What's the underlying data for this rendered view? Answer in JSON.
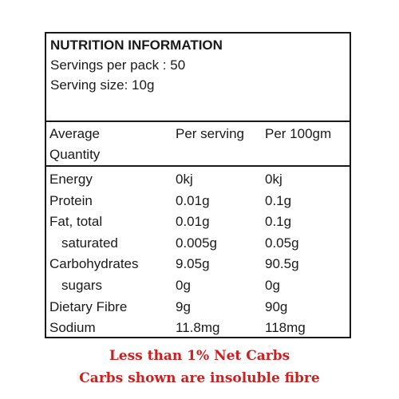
{
  "panel": {
    "title": "NUTRITION INFORMATION",
    "servings_per_pack": "Servings per pack : 50",
    "serving_size": "Serving size: 10g",
    "columns": {
      "quantity_line1": "Average",
      "quantity_line2": "Quantity",
      "per_serving": "Per serving",
      "per_100": "Per 100gm"
    },
    "rows": [
      {
        "label": "Energy",
        "per_serving": "0kj",
        "per_100": "0kj"
      },
      {
        "label": "Protein",
        "per_serving": "0.01g",
        "per_100": "0.1g"
      },
      {
        "label": "Fat, total",
        "per_serving": "0.01g",
        "per_100": "0.1g"
      },
      {
        "label": "saturated",
        "per_serving": "0.005g",
        "per_100": "0.05g"
      },
      {
        "label": "Carbohydrates",
        "per_serving": "9.05g",
        "per_100": "90.5g"
      },
      {
        "label": "sugars",
        "per_serving": "0g",
        "per_100": "0g"
      },
      {
        "label": "Dietary Fibre",
        "per_serving": "9g",
        "per_100": "90g"
      },
      {
        "label": "Sodium",
        "per_serving": "11.8mg",
        "per_100": "118mg"
      }
    ]
  },
  "footnotes": {
    "line1": "Less than 1% Net Carbs",
    "line2": "Carbs shown are insoluble fibre"
  },
  "colors": {
    "border": "#1a1a1a",
    "footnote": "#cc1f1f"
  }
}
